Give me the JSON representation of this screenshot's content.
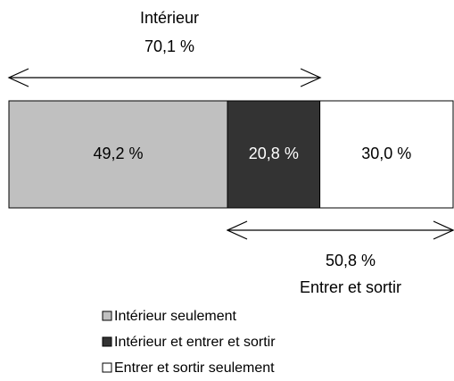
{
  "chart_data": {
    "type": "stacked-bar",
    "orientation": "horizontal",
    "xlim": [
      0,
      100
    ],
    "series": [
      {
        "name": "Intérieur seulement",
        "color": "#c0c0c0",
        "values": [
          49.2
        ],
        "value_labels": [
          "49,2 %"
        ]
      },
      {
        "name": "Intérieur et entrer et sortir",
        "color": "#333333",
        "values": [
          20.8
        ],
        "value_labels": [
          "20,8 %"
        ]
      },
      {
        "name": "Entrer et sortir seulement",
        "color": "#ffffff",
        "values": [
          30.0
        ],
        "value_labels": [
          "30,0 %"
        ]
      }
    ],
    "annotations": [
      {
        "text": "Intérieur",
        "value": 70.1,
        "value_label": "70,1 %"
      },
      {
        "text": "Entrer et sortir",
        "value": 50.8,
        "value_label": "50,8 %"
      }
    ]
  }
}
